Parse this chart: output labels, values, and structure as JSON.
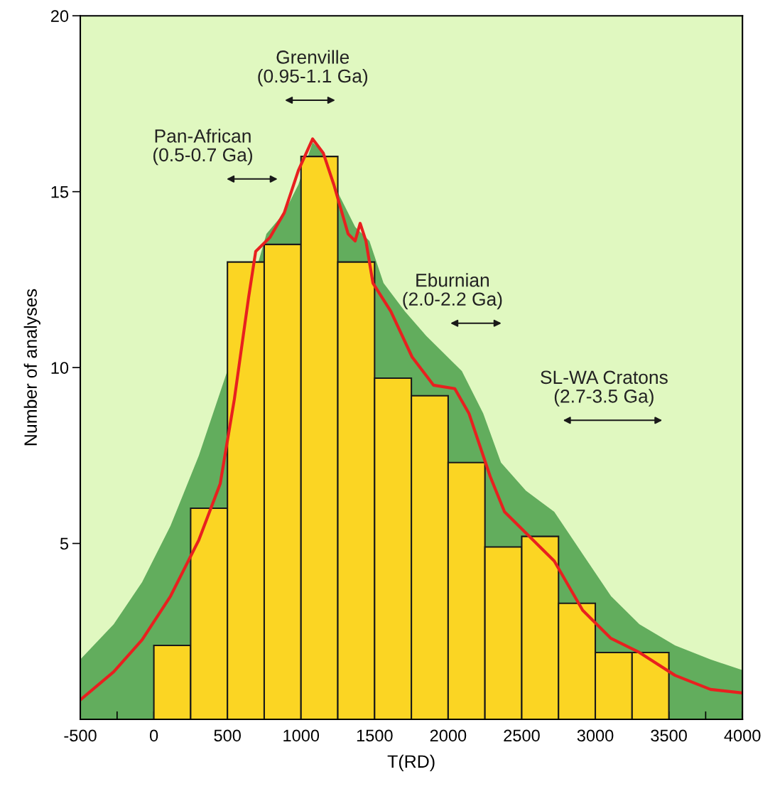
{
  "chart_data": {
    "type": "histogram",
    "xlabel": "T(RD)",
    "ylabel": "Number of analyses",
    "bins": [
      0,
      250,
      500,
      750,
      1000,
      1250,
      1500,
      1750,
      2000,
      2250,
      2500,
      2750,
      3000,
      3250,
      3500
    ],
    "values": [
      2.1,
      6,
      13,
      13.5,
      16,
      13,
      9.7,
      9.2,
      7.3,
      4.9,
      5.2,
      3.3,
      1.9,
      1.9
    ],
    "color": "#fbd523",
    "series": [
      {
        "type": "area",
        "color": "#62ad5d",
        "x": [
          -500,
          -273,
          -80,
          113,
          306,
          499,
          765,
          886,
          982,
          1079,
          1151,
          1248,
          1368,
          1465,
          1561,
          1706,
          1851,
          1972,
          2093,
          2238,
          2359,
          2528,
          2721,
          2914,
          3107,
          3300,
          3542,
          3783,
          4000
        ],
        "values": [
          1.7,
          2.7,
          3.9,
          5.5,
          7.5,
          9.9,
          13.8,
          14.4,
          15.2,
          16.4,
          16.1,
          15.0,
          14.0,
          13.6,
          12.4,
          11.6,
          10.9,
          10.4,
          9.9,
          8.7,
          7.3,
          6.5,
          5.9,
          4.7,
          3.5,
          2.7,
          2.1,
          1.7,
          1.4
        ]
      },
      {
        "type": "line",
        "color": "#e8201f",
        "x": [
          -500,
          -273,
          -80,
          113,
          306,
          451,
          547,
          644,
          692,
          789,
          886,
          982,
          1079,
          1151,
          1223,
          1320,
          1368,
          1402,
          1441,
          1489,
          1610,
          1755,
          1900,
          2045,
          2141,
          2286,
          2383,
          2528,
          2721,
          2914,
          3107,
          3300,
          3542,
          3783,
          4000
        ],
        "values": [
          0.55,
          1.35,
          2.26,
          3.5,
          5.1,
          6.7,
          9.1,
          12.0,
          13.3,
          13.7,
          14.4,
          15.6,
          16.5,
          16.1,
          15.2,
          13.8,
          13.6,
          14.1,
          13.6,
          12.4,
          11.6,
          10.3,
          9.5,
          9.4,
          8.7,
          6.9,
          5.9,
          5.3,
          4.5,
          3.1,
          2.3,
          1.9,
          1.25,
          0.85,
          0.75
        ]
      }
    ],
    "annotations": [
      "Pan-African\n(0.5-0.7 Ga)",
      "Grenville\n(0.95-1.1 Ga)",
      "Eburnian\n(2.0-2.2 Ga)",
      "SL-WA Cratons\n(2.7-3.5 Ga)"
    ],
    "xlim": [
      -500,
      4000
    ],
    "ylim": [
      0,
      20
    ],
    "xticks": [
      -500,
      {
        "value": -250,
        "label": null
      },
      0,
      500,
      1000,
      1500,
      2000,
      2500,
      3000,
      3500,
      {
        "value": 3750,
        "label": null
      },
      4000
    ],
    "yticks": [
      5,
      10,
      15,
      20
    ],
    "grid": false,
    "legend": false
  }
}
